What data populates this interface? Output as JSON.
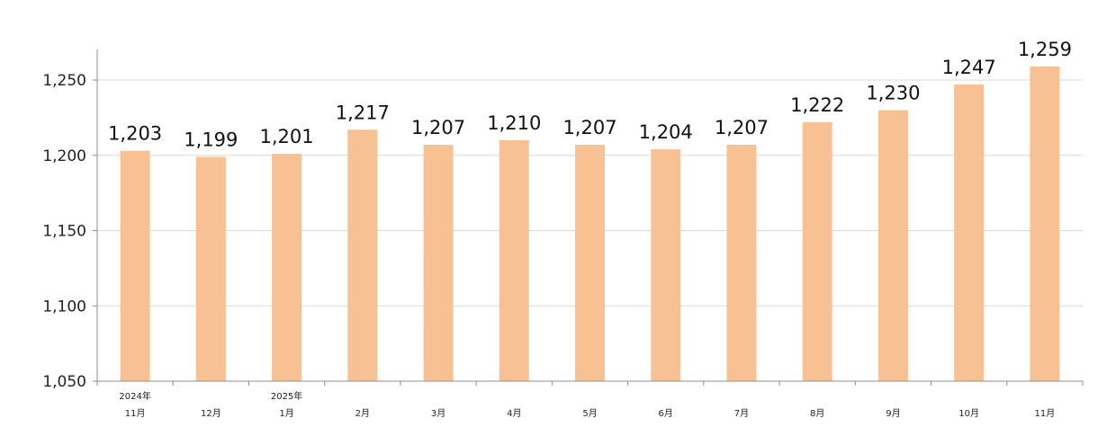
{
  "chart_data": {
    "type": "bar",
    "categories": [
      [
        "2024年",
        "11月"
      ],
      [
        "12月"
      ],
      [
        "2025年",
        "1月"
      ],
      [
        "2月"
      ],
      [
        "3月"
      ],
      [
        "4月"
      ],
      [
        "5月"
      ],
      [
        "6月"
      ],
      [
        "7月"
      ],
      [
        "8月"
      ],
      [
        "9月"
      ],
      [
        "10月"
      ],
      [
        "11月"
      ]
    ],
    "values": [
      1203,
      1199,
      1201,
      1217,
      1207,
      1210,
      1207,
      1204,
      1207,
      1222,
      1230,
      1247,
      1259
    ],
    "data_labels": [
      "1,203",
      "1,199",
      "1,201",
      "1,217",
      "1,207",
      "1,210",
      "1,207",
      "1,204",
      "1,207",
      "1,222",
      "1,230",
      "1,247",
      "1,259"
    ],
    "y_ticks": [
      1050,
      1100,
      1150,
      1200,
      1250
    ],
    "y_tick_labels": [
      "1,050",
      "1,100",
      "1,150",
      "1,200",
      "1,250"
    ],
    "ylim": [
      1050,
      1260
    ],
    "grid": "horizontal",
    "legend": "none",
    "title": "",
    "xlabel": "",
    "ylabel": "",
    "colors": {
      "bar": "#f8c194",
      "grid": "#d9d9d9",
      "axis": "#8c8c8c",
      "text": "#222222"
    }
  }
}
